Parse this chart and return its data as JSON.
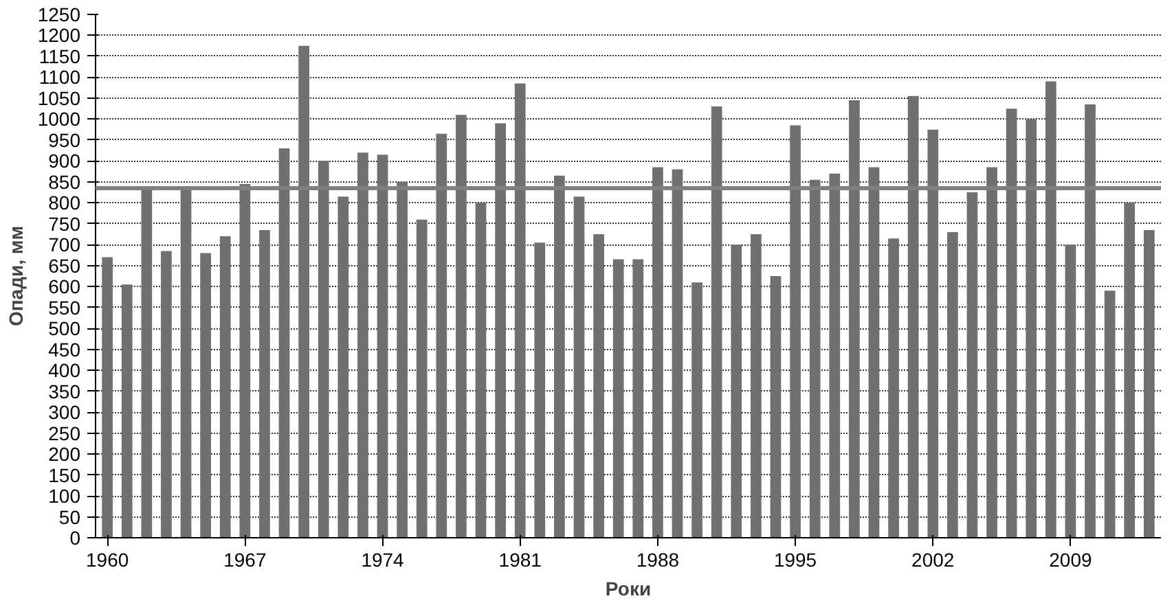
{
  "chart_data": {
    "type": "bar",
    "xlabel": "Роки",
    "ylabel": "Опади, мм",
    "categories": [
      "1960",
      null,
      null,
      null,
      null,
      null,
      null,
      "1967",
      null,
      null,
      null,
      null,
      null,
      null,
      "1974",
      null,
      null,
      null,
      null,
      null,
      null,
      "1981",
      null,
      null,
      null,
      null,
      null,
      null,
      "1988",
      null,
      null,
      null,
      null,
      null,
      null,
      "1995",
      null,
      null,
      null,
      null,
      null,
      null,
      "2002",
      null,
      null,
      null,
      null,
      null,
      null,
      "2009",
      null,
      null,
      null,
      null
    ],
    "values": [
      670,
      605,
      830,
      685,
      830,
      680,
      720,
      845,
      735,
      930,
      1175,
      900,
      815,
      920,
      915,
      850,
      760,
      965,
      1010,
      800,
      990,
      1085,
      705,
      865,
      815,
      725,
      665,
      665,
      885,
      880,
      610,
      1030,
      700,
      725,
      625,
      985,
      855,
      870,
      1045,
      885,
      715,
      1055,
      975,
      730,
      825,
      885,
      1025,
      1000,
      1090,
      700,
      1035,
      590,
      800,
      735
    ],
    "color": "#707070",
    "ylim": [
      0,
      1250
    ],
    "yticks": [
      0,
      50,
      100,
      150,
      200,
      250,
      300,
      350,
      400,
      450,
      500,
      550,
      600,
      650,
      700,
      750,
      800,
      850,
      900,
      950,
      1000,
      1050,
      1100,
      1150,
      1200,
      1250
    ],
    "ref_lines": [
      {
        "axis": "y",
        "value": 835,
        "color": "#808080"
      }
    ],
    "grid": "y"
  }
}
